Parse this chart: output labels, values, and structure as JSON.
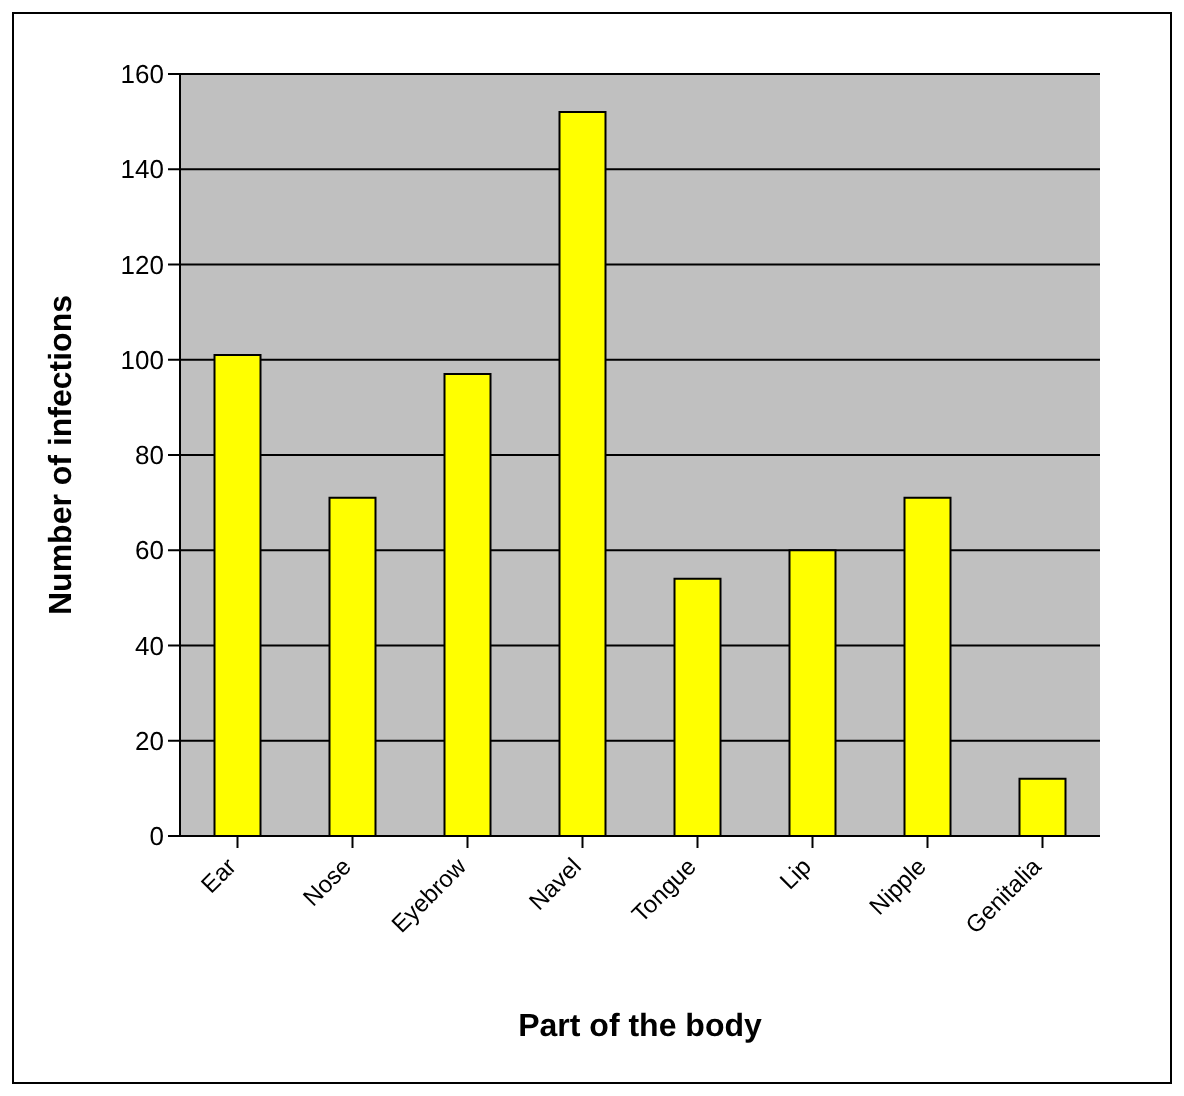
{
  "chart_data": {
    "type": "bar",
    "xlabel": "Part of the body",
    "ylabel": "Number of infections",
    "categories": [
      "Ear",
      "Nose",
      "Eyebrow",
      "Navel",
      "Tongue",
      "Lip",
      "Nipple",
      "Genitalia"
    ],
    "values": [
      101,
      71,
      97,
      152,
      54,
      60,
      71,
      12
    ],
    "color": "#ffff00",
    "ylim": [
      0,
      160
    ],
    "yticks": [
      0,
      20,
      40,
      60,
      80,
      100,
      120,
      140,
      160
    ],
    "grid": "y"
  }
}
